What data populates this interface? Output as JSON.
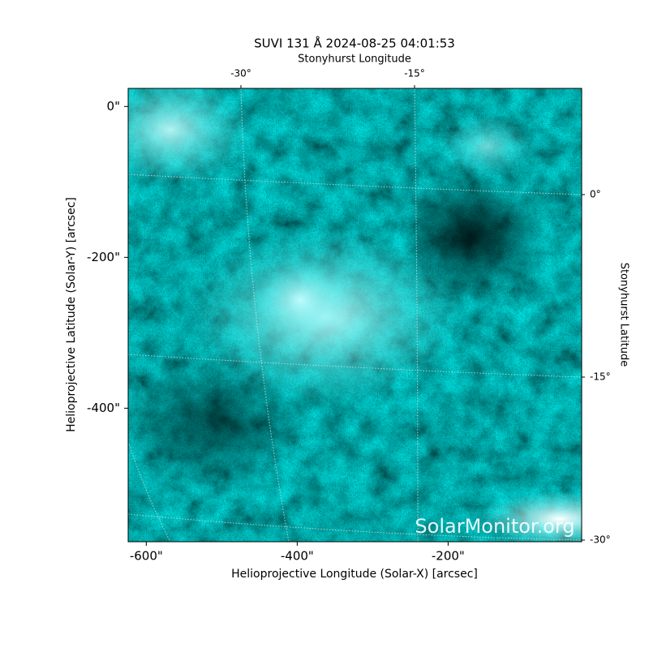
{
  "chart_data": {
    "type": "image",
    "title": "SUVI 131 Å 2024-08-25 04:01:53",
    "xlabel": "Helioprojective Longitude (Solar-X) [arcsec]",
    "ylabel": "Helioprojective Latitude (Solar-Y) [arcsec]",
    "x2label": "Stonyhurst Longitude",
    "y2label": "Stonyhurst Latitude",
    "xlim": [
      -624,
      -23
    ],
    "ylim": [
      -577,
      24
    ],
    "xticks": [
      {
        "value": -600,
        "label": "-600\""
      },
      {
        "value": -400,
        "label": "-400\""
      },
      {
        "value": -200,
        "label": "-200\""
      }
    ],
    "yticks": [
      {
        "value": 0,
        "label": "0\""
      },
      {
        "value": -200,
        "label": "-200\""
      },
      {
        "value": -400,
        "label": "-400\""
      }
    ],
    "x2ticks": [
      {
        "value": -30,
        "label": "-30°"
      },
      {
        "value": -15,
        "label": "-15°"
      }
    ],
    "y2ticks": [
      {
        "value": 0,
        "label": "0°"
      },
      {
        "value": -15,
        "label": "-15°"
      },
      {
        "value": -30,
        "label": "-30°"
      }
    ],
    "watermark": "SolarMonitor.org"
  }
}
